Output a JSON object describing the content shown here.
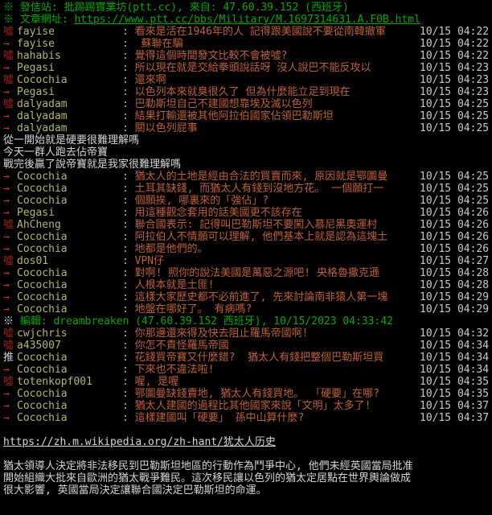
{
  "colors": {
    "bg": "#000000",
    "green": "#00a800",
    "boo": "#a02000",
    "arrow": "#c62f2f",
    "push": "#d4d4d4",
    "user": "#b6b66b",
    "ctext": "#bf6038",
    "time": "#c9c9c9",
    "plain": "#d6d6d6"
  },
  "header": {
    "origin_line": "※ 發信站: 批踢踢實業坊(ptt.cc), 來自: 47.60.39.152 (西班牙)",
    "article_label": "※ 文章網址: ",
    "article_url": "https://www.ptt.cc/bbs/Military/M.1697314631.A.F0B.html"
  },
  "lines": [
    {
      "type": "comment",
      "tag": "噓",
      "user": "fayise",
      "text": "看來是活在1946年的人 記得跟美國說不要從南韓撤軍",
      "time": "10/15 04:22"
    },
    {
      "type": "comment",
      "tag": "→",
      "user": "fayise",
      "text": " 蘇聯在騙",
      "time": "10/15 04:22"
    },
    {
      "type": "comment",
      "tag": "噓",
      "user": "hahabis",
      "text": "覺得這個時間發文比較不會被噓?",
      "time": "10/15 04:22"
    },
    {
      "type": "comment",
      "tag": "→",
      "user": "Pegasi",
      "text": "所以現在就是交給拳頭說話呀 沒人說巴不能反攻以",
      "time": "10/15 04:23"
    },
    {
      "type": "comment",
      "tag": "噓",
      "user": "Cocochia",
      "text": "還來啊",
      "time": "10/15 04:23"
    },
    {
      "type": "comment",
      "tag": "→",
      "user": "Pegasi",
      "text": "以色列本來就臭很久了 但為什麼能立足到現在",
      "time": "10/15 04:23"
    },
    {
      "type": "comment",
      "tag": "噓",
      "user": "dalyadam",
      "text": "巴勒斯坦自己不建國想靠埃及滅以色列",
      "time": "10/15 04:25"
    },
    {
      "type": "comment",
      "tag": "→",
      "user": "dalyadam",
      "text": "結果打輸還被其他阿拉伯國家佔領巴勒斯坦",
      "time": "10/15 04:25"
    },
    {
      "type": "comment",
      "tag": "→",
      "user": "dalyadam",
      "text": "關以色列屁事",
      "time": "10/15 04:25"
    },
    {
      "type": "plain",
      "text": "從一開始就是硬要很難理解嗎"
    },
    {
      "type": "plain",
      "text": "今天一群人跑去佔帝寶"
    },
    {
      "type": "plain",
      "text": "戰完後贏了說帝寶就是我家很難理解嗎"
    },
    {
      "type": "comment",
      "tag": "→",
      "user": "Cocochia",
      "text": "猶太人的土地是經由合法的買賣而來, 原因就是鄂圖曼",
      "time": "10/15 04:25"
    },
    {
      "type": "comment",
      "tag": "→",
      "user": "Cocochia",
      "text": "土耳其缺錢, 而猶太人有錢到沒地方花。 一個願打一",
      "time": "10/15 04:25"
    },
    {
      "type": "comment",
      "tag": "→",
      "user": "Cocochia",
      "text": "個願挨, 哪裏來的「強佔」?",
      "time": "10/15 04:25"
    },
    {
      "type": "comment",
      "tag": "→",
      "user": "Pegasi",
      "text": "用這種觀念套用的話美國更不該存在",
      "time": "10/15 04:26"
    },
    {
      "type": "comment",
      "tag": "噓",
      "user": "AhCheng",
      "text": "聯合國表示: 記得叫巴勒斯坦不要闖入慕尼黑奧運村",
      "time": "10/15 04:26"
    },
    {
      "type": "comment",
      "tag": "→",
      "user": "Cocochia",
      "text": "阿拉伯人不情願可以理解, 他們基本上就是認為這塊土",
      "time": "10/15 04:26"
    },
    {
      "type": "comment",
      "tag": "→",
      "user": "Cocochia",
      "text": "地都是他們的。",
      "time": "10/15 04:26"
    },
    {
      "type": "comment",
      "tag": "噓",
      "user": "dos01",
      "text": "VPN仔",
      "time": "10/15 04:27"
    },
    {
      "type": "comment",
      "tag": "→",
      "user": "Cocochia",
      "text": "對啊! 照你的說法美國是萬惡之源吧! 央格魯撒克遜",
      "time": "10/15 04:28"
    },
    {
      "type": "comment",
      "tag": "→",
      "user": "Cocochia",
      "text": "人根本就是土匪!",
      "time": "10/15 04:28"
    },
    {
      "type": "comment",
      "tag": "→",
      "user": "Cocochia",
      "text": "這樣大家歷史都不必前進了, 先來討論南非猿人第一塊",
      "time": "10/15 04:29"
    },
    {
      "type": "comment",
      "tag": "→",
      "user": "Cocochia",
      "text": "地盤在哪好了。 有病嗎?",
      "time": "10/15 04:29"
    },
    {
      "type": "edit",
      "mark": "※ ",
      "text": "編輯: dreambreaken (47.60.39.152 西班牙), 10/15/2023 04:33:42"
    },
    {
      "type": "comment",
      "tag": "噓",
      "user": "cwjchris",
      "text": "你那邊還來得及快去阻止羅馬帝國啊!",
      "time": "10/15 04:32"
    },
    {
      "type": "comment",
      "tag": "噓",
      "user": "a435007",
      "text": "你怎不責怪羅馬帝國",
      "time": "10/15 04:34"
    },
    {
      "type": "comment",
      "tag": "推",
      "user": "Cocochia",
      "text": "花錢買帝寶又什麼錯?  猶太人有錢把整個巴勒斯坦買",
      "time": "10/15 04:34"
    },
    {
      "type": "comment",
      "tag": "→",
      "user": "Cocochia",
      "text": "下來也不違法啦!",
      "time": "10/15 04:34"
    },
    {
      "type": "comment",
      "tag": "噓",
      "user": "totenkopf001",
      "text": "喔, 是喔",
      "time": "10/15 04:35"
    },
    {
      "type": "comment",
      "tag": "→",
      "user": "Cocochia",
      "text": "鄂圖曼缺錢賣地, 猶太人有錢買地。 「硬要」在哪?",
      "time": "10/15 04:35"
    },
    {
      "type": "comment",
      "tag": "→",
      "user": "Cocochia",
      "text": "猶太人建國的過程比其他國家來說「文明」太多了!",
      "time": "10/15 04:37"
    },
    {
      "type": "comment",
      "tag": "→",
      "user": "Cocochia",
      "text": "這樣建國叫「硬要」 孫中山算什麼?",
      "time": "10/15 04:37"
    }
  ],
  "footer": {
    "wiki_url": "https://zh.m.wikipedia.org/zh-hant/犹太人历史",
    "paragraph": [
      "猶太領導人決定將非法移民到巴勒斯坦地區的行動作為鬥爭中心, 他們未經英國當局批准",
      "開始組織大批來自歐洲的猶太戰爭難民。這次移民讓以色列的猶太定居點在世界輿論做成",
      "很大影響, 英國當局決定讓聯合國決定巴勒斯坦的命運。"
    ]
  }
}
